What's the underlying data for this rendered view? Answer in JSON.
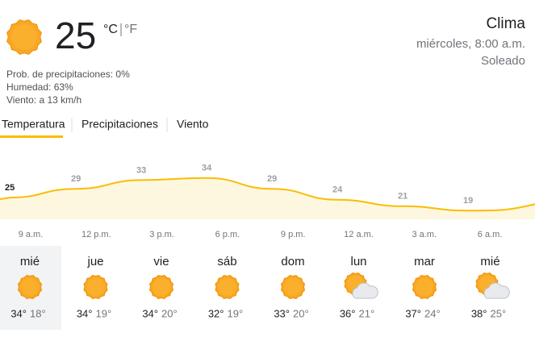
{
  "current": {
    "temp": "25",
    "units": "°C",
    "unit_alt": "°F",
    "icon": "sun",
    "precip": "Prob. de precipitaciones: 0%",
    "humidity": "Humedad: 63%",
    "wind": "Viento: a 13 km/h"
  },
  "header": {
    "title": "Clima",
    "datetime": "miércoles, 8:00 a.m.",
    "condition": "Soleado"
  },
  "tabs": [
    "Temperatura",
    "Precipitaciones",
    "Viento"
  ],
  "hourly": {
    "times": [
      "9 a.m.",
      "12 p.m.",
      "3 p.m.",
      "6 p.m.",
      "9 p.m.",
      "12 a.m.",
      "3 a.m.",
      "6 a.m."
    ],
    "temps": [
      25,
      29,
      33,
      34,
      29,
      24,
      21,
      19
    ]
  },
  "days": [
    {
      "name": "mié",
      "high": "34°",
      "low": "18°",
      "icon": "sun"
    },
    {
      "name": "jue",
      "high": "34°",
      "low": "19°",
      "icon": "sun"
    },
    {
      "name": "vie",
      "high": "34°",
      "low": "20°",
      "icon": "sun"
    },
    {
      "name": "sáb",
      "high": "32°",
      "low": "19°",
      "icon": "sun"
    },
    {
      "name": "dom",
      "high": "33°",
      "low": "20°",
      "icon": "sun"
    },
    {
      "name": "lun",
      "high": "36°",
      "low": "21°",
      "icon": "partly"
    },
    {
      "name": "mar",
      "high": "37°",
      "low": "24°",
      "icon": "sun"
    },
    {
      "name": "mié",
      "high": "38°",
      "low": "25°",
      "icon": "partly"
    }
  ]
}
